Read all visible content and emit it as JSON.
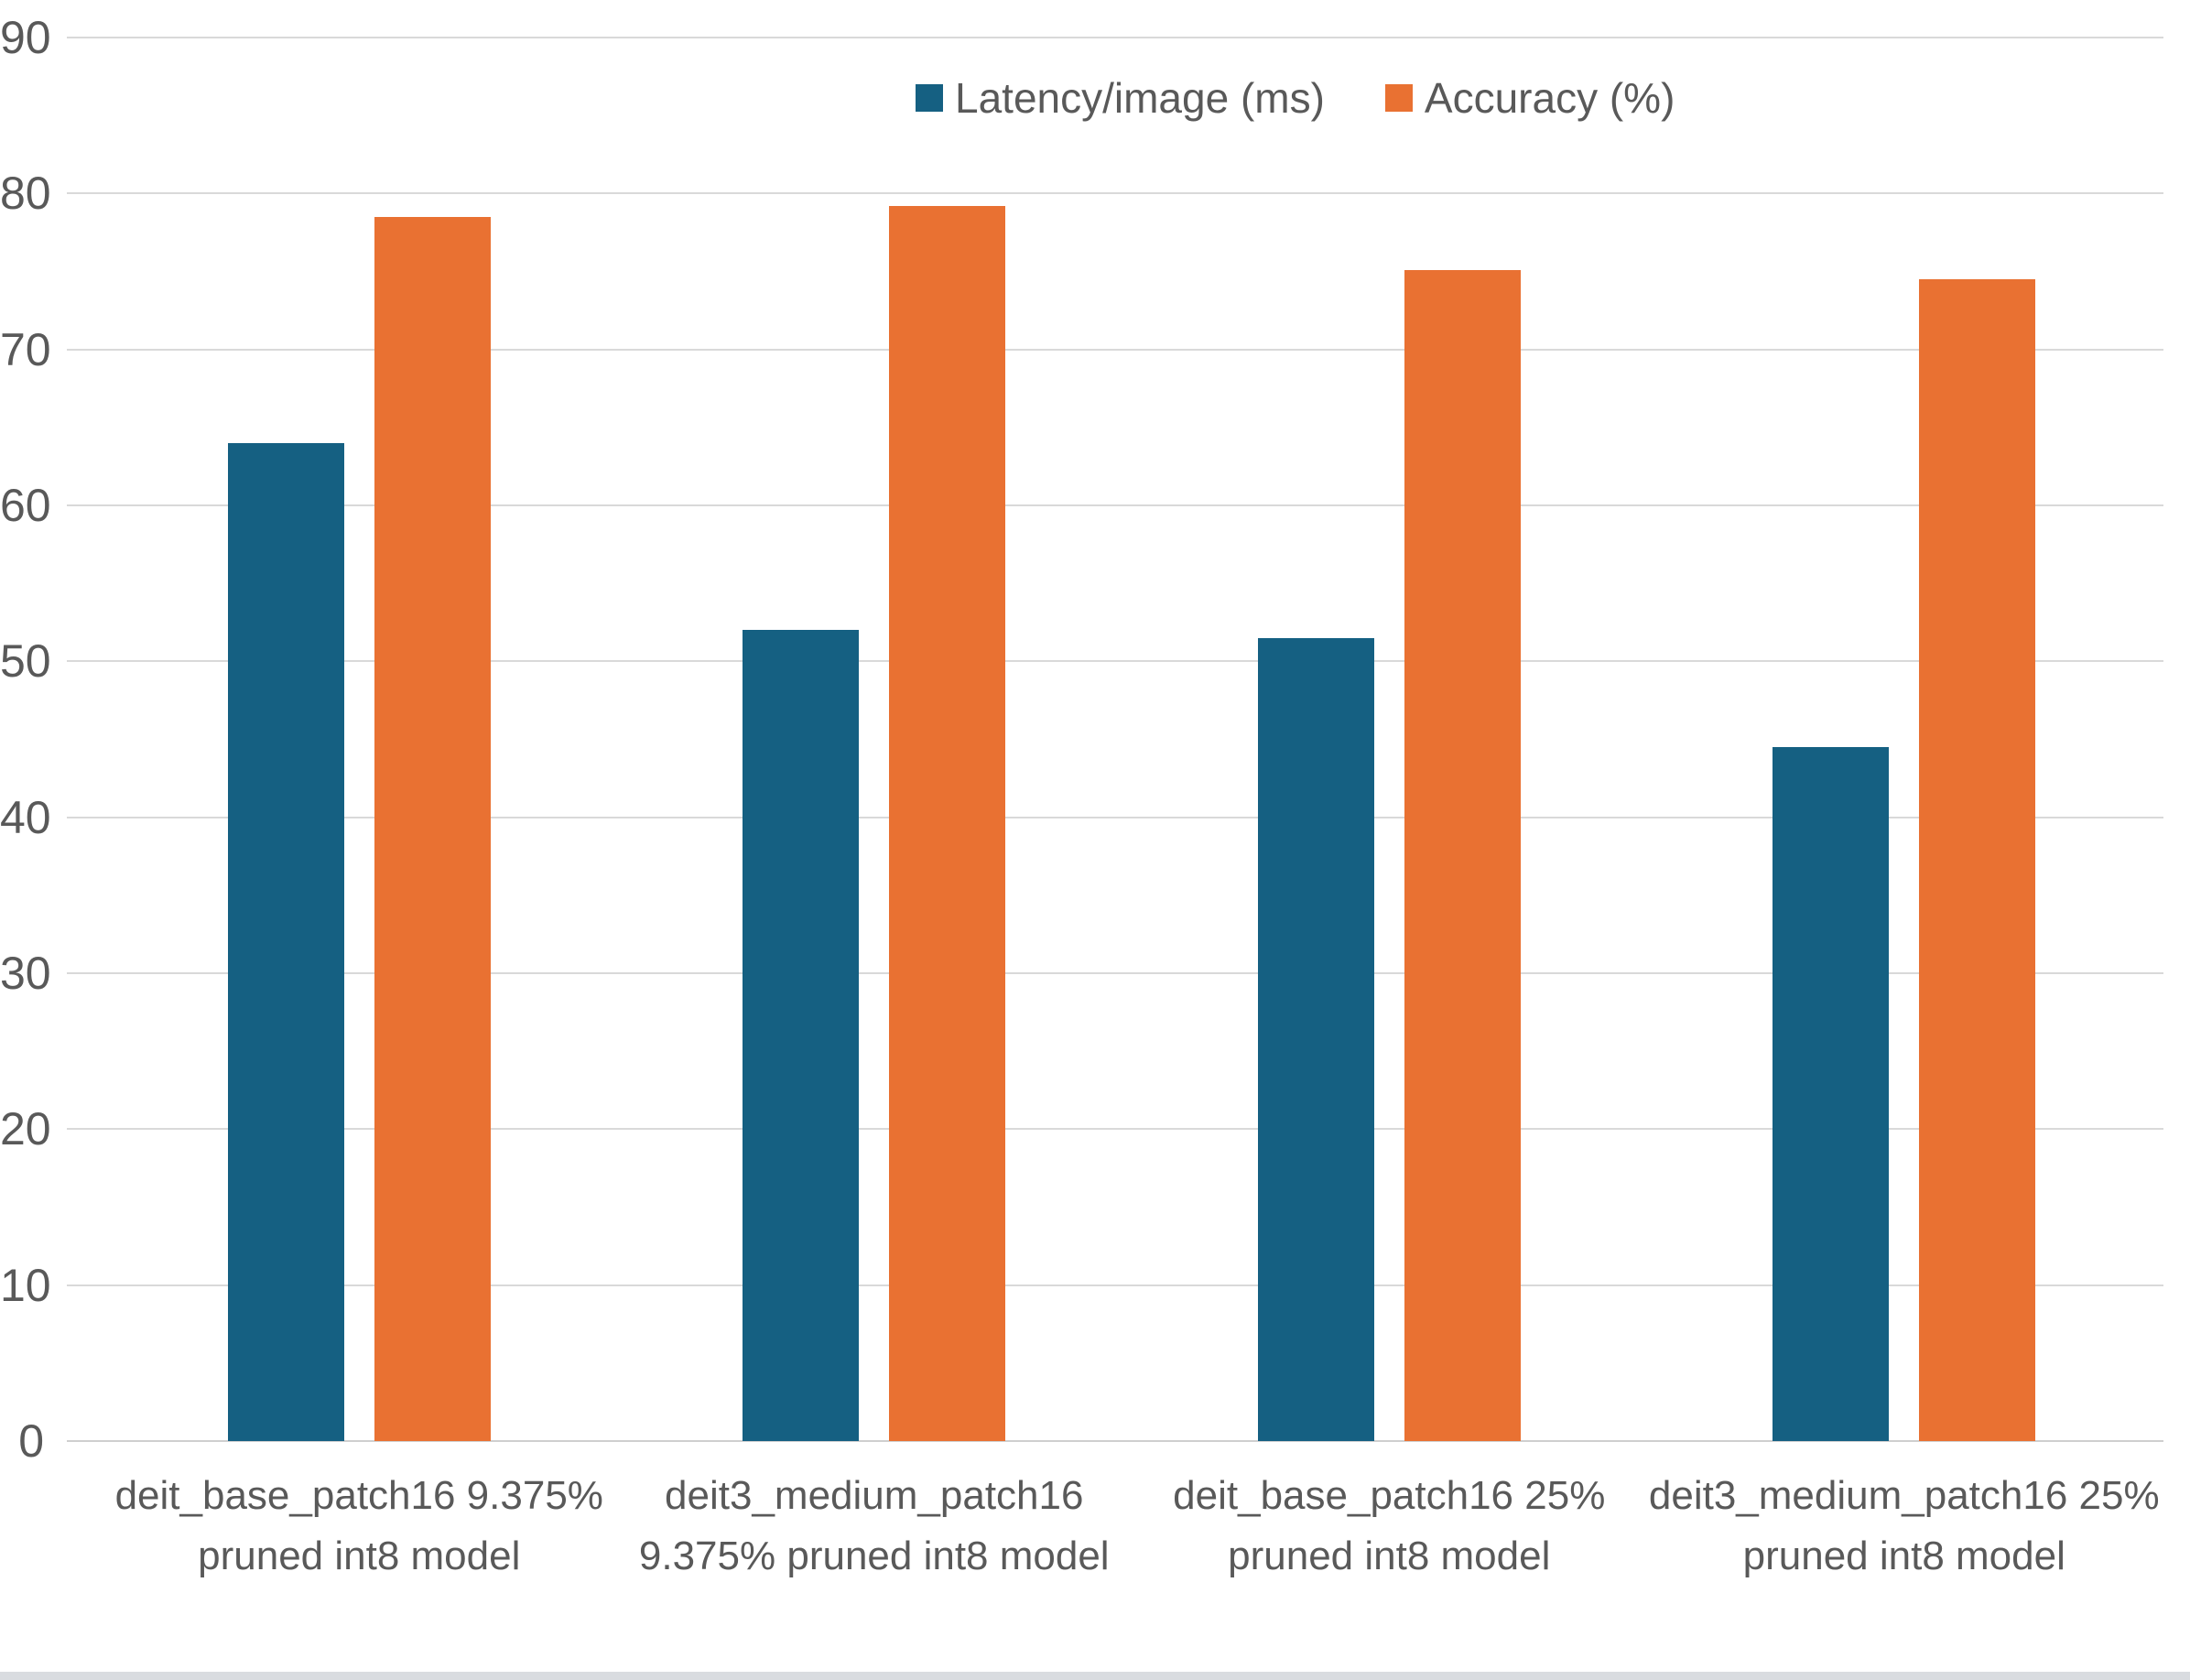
{
  "chart_data": {
    "type": "bar",
    "title": "",
    "xlabel": "",
    "ylabel": "",
    "categories": [
      "deit_base_patch16 9.375% pruned int8 model",
      "deit3_medium_patch16 9.375% pruned int8 model",
      "deit_base_patch16 25% pruned int8 model",
      "deit3_medium_patch16 25% pruned int8 model"
    ],
    "series": [
      {
        "name": "Latency/image (ms)",
        "color": "#156082",
        "values": [
          64,
          52,
          51.5,
          44.5
        ]
      },
      {
        "name": "Accuracy (%)",
        "color": "#E97132",
        "values": [
          78.5,
          79.2,
          75.1,
          74.5
        ]
      }
    ],
    "ylim": [
      0,
      90
    ],
    "ytick_step": 10,
    "ytick_labels": [
      "0",
      "10",
      "20",
      "30",
      "40",
      "50",
      "60",
      "70",
      "80",
      "90"
    ],
    "grid": "horizontal-only",
    "legend_position": "top-center"
  },
  "style": {
    "text_color": "#595959",
    "gridline_color": "#D9D9D9",
    "background_color": "#FFFFFF"
  }
}
